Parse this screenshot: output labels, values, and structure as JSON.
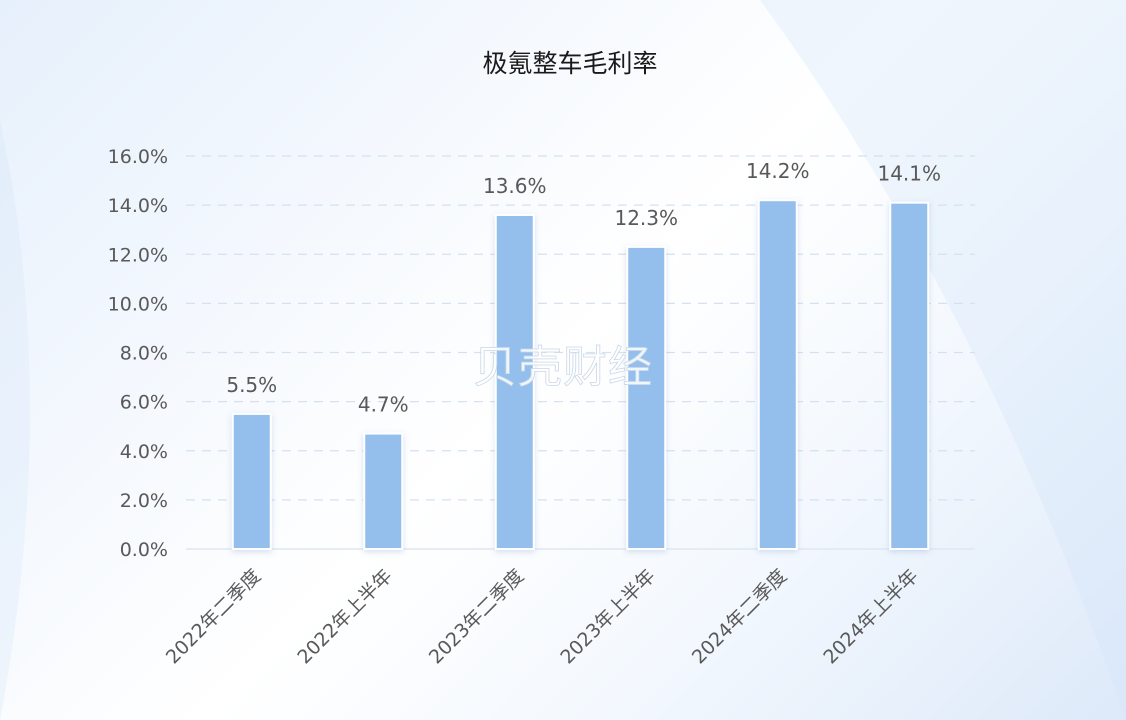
{
  "chart_data": {
    "type": "bar",
    "title": "极氪整车毛利率",
    "categories": [
      "2022年二季度",
      "2022年上半年",
      "2023年二季度",
      "2023年上半年",
      "2024年二季度",
      "2024年上半年"
    ],
    "values": [
      5.5,
      4.7,
      13.6,
      12.3,
      14.2,
      14.1
    ],
    "value_labels": [
      "5.5%",
      "4.7%",
      "13.6%",
      "12.3%",
      "14.2%",
      "14.1%"
    ],
    "y_ticks": [
      "0.0%",
      "2.0%",
      "4.0%",
      "6.0%",
      "8.0%",
      "10.0%",
      "12.0%",
      "14.0%",
      "16.0%"
    ],
    "ylim": [
      0,
      16
    ],
    "xlabel": "",
    "ylabel": "",
    "grid": true,
    "grid_style": "dashed",
    "legend": "none",
    "bar_color": "#94bfec"
  },
  "watermark": "贝壳财经"
}
